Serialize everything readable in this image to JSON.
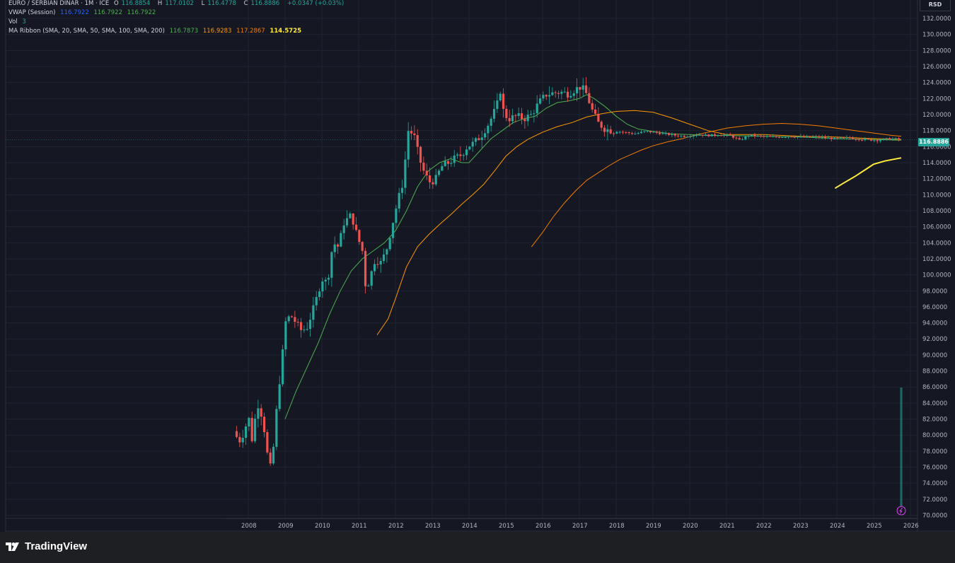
{
  "header": {
    "symbol": "EURO / SERBIAN DINAR · 1M · ICE",
    "ohlc": {
      "o_label": "O",
      "o": "116.8854",
      "h_label": "H",
      "h": "117.0102",
      "l_label": "L",
      "l": "116.4778",
      "c_label": "C",
      "c": "116.8886",
      "change": "+0.0347 (+0.03%)"
    },
    "vwap": {
      "label": "VWAP (Session)",
      "v1": "116.7922",
      "v2": "116.7922",
      "v3": "116.7922"
    },
    "vol": {
      "label": "Vol",
      "value": "3"
    },
    "ma_ribbon": {
      "label": "MA Ribbon (SMA, 20, SMA, 50, SMA, 100, SMA, 200)",
      "v20": "116.7873",
      "v50": "116.9283",
      "v100": "117.2867",
      "v200": "114.5725"
    }
  },
  "currency": "RSD",
  "last_price": "116.8886",
  "brand": "TradingView",
  "colors": {
    "up": "#26a69a",
    "down": "#ef5350",
    "ma20": "#4caf50",
    "ma50": "#ff9800",
    "ma100": "#f57c00",
    "ma200": "#ffeb3b",
    "background": "#151823"
  },
  "chart_data": {
    "type": "candlestick",
    "interval": "1M",
    "y_ticks": [
      "132.0000",
      "130.0000",
      "128.0000",
      "126.0000",
      "124.0000",
      "122.0000",
      "120.0000",
      "118.0000",
      "116.0000",
      "114.0000",
      "112.0000",
      "110.0000",
      "108.0000",
      "106.0000",
      "104.0000",
      "102.0000",
      "100.0000",
      "98.0000",
      "96.0000",
      "94.0000",
      "92.0000",
      "90.0000",
      "88.0000",
      "86.0000",
      "84.0000",
      "82.0000",
      "80.0000",
      "78.0000",
      "76.0000",
      "74.0000",
      "72.0000",
      "70.0000"
    ],
    "x_ticks": [
      "2008",
      "2009",
      "2010",
      "2011",
      "2012",
      "2013",
      "2014",
      "2015",
      "2016",
      "2017",
      "2018",
      "2019",
      "2020",
      "2021",
      "2022",
      "2023",
      "2024",
      "2025",
      "2026"
    ],
    "ylim": [
      69.5,
      132.5
    ],
    "xlim": [
      2006.8,
      2026.4
    ],
    "close_path": [
      [
        2007.6,
        80.5
      ],
      [
        2007.75,
        79.2
      ],
      [
        2007.9,
        80.5
      ],
      [
        2008.0,
        82.5
      ],
      [
        2008.1,
        79.5
      ],
      [
        2008.25,
        84.0
      ],
      [
        2008.4,
        82.0
      ],
      [
        2008.5,
        78.0
      ],
      [
        2008.6,
        76.0
      ],
      [
        2008.7,
        79.0
      ],
      [
        2008.8,
        85.0
      ],
      [
        2008.9,
        88.5
      ],
      [
        2009.0,
        94.0
      ],
      [
        2009.15,
        95.0
      ],
      [
        2009.3,
        94.0
      ],
      [
        2009.45,
        93.0
      ],
      [
        2009.6,
        93.5
      ],
      [
        2009.75,
        95.5
      ],
      [
        2009.85,
        97.0
      ],
      [
        2010.0,
        99.5
      ],
      [
        2010.15,
        99.0
      ],
      [
        2010.3,
        104.0
      ],
      [
        2010.45,
        103.5
      ],
      [
        2010.6,
        106.5
      ],
      [
        2010.8,
        107.5
      ],
      [
        2010.95,
        105.0
      ],
      [
        2011.1,
        103.0
      ],
      [
        2011.2,
        98.0
      ],
      [
        2011.3,
        99.5
      ],
      [
        2011.45,
        102.0
      ],
      [
        2011.6,
        101.5
      ],
      [
        2011.75,
        103.0
      ],
      [
        2011.9,
        106.0
      ],
      [
        2012.05,
        109.0
      ],
      [
        2012.2,
        111.5
      ],
      [
        2012.35,
        118.0
      ],
      [
        2012.5,
        117.5
      ],
      [
        2012.65,
        114.5
      ],
      [
        2012.8,
        112.5
      ],
      [
        2012.95,
        111.5
      ],
      [
        2013.1,
        112.0
      ],
      [
        2013.25,
        113.5
      ],
      [
        2013.45,
        114.0
      ],
      [
        2013.6,
        114.5
      ],
      [
        2013.8,
        115.0
      ],
      [
        2013.95,
        116.0
      ],
      [
        2014.15,
        116.5
      ],
      [
        2014.35,
        117.5
      ],
      [
        2014.55,
        119.0
      ],
      [
        2014.75,
        121.0
      ],
      [
        2014.85,
        123.0
      ],
      [
        2014.95,
        120.0
      ],
      [
        2015.1,
        119.5
      ],
      [
        2015.3,
        119.8
      ],
      [
        2015.5,
        119.5
      ],
      [
        2015.7,
        120.0
      ],
      [
        2015.9,
        121.5
      ],
      [
        2016.1,
        122.5
      ],
      [
        2016.3,
        122.7
      ],
      [
        2016.5,
        122.8
      ],
      [
        2016.7,
        122.6
      ],
      [
        2016.9,
        123.2
      ],
      [
        2017.05,
        123.5
      ],
      [
        2017.2,
        122.5
      ],
      [
        2017.35,
        120.5
      ],
      [
        2017.5,
        119.0
      ],
      [
        2017.7,
        118.2
      ],
      [
        2017.9,
        118.0
      ],
      [
        2018.2,
        117.8
      ],
      [
        2018.5,
        117.6
      ],
      [
        2018.8,
        117.9
      ],
      [
        2019.0,
        117.8
      ],
      [
        2019.3,
        117.6
      ],
      [
        2019.6,
        117.4
      ],
      [
        2019.9,
        117.3
      ],
      [
        2020.2,
        117.5
      ],
      [
        2020.5,
        117.4
      ],
      [
        2020.8,
        117.5
      ],
      [
        2021.1,
        117.4
      ],
      [
        2021.35,
        116.8
      ],
      [
        2021.6,
        117.4
      ],
      [
        2021.9,
        117.3
      ],
      [
        2022.3,
        117.2
      ],
      [
        2022.7,
        117.3
      ],
      [
        2023.1,
        117.2
      ],
      [
        2023.5,
        117.2
      ],
      [
        2023.9,
        117.0
      ],
      [
        2024.3,
        117.1
      ],
      [
        2024.7,
        116.9
      ],
      [
        2025.1,
        116.8
      ],
      [
        2025.45,
        117.0
      ],
      [
        2025.75,
        116.9
      ]
    ],
    "series": [
      {
        "name": "SMA 20",
        "color": "#4caf50",
        "points": [
          [
            2009.0,
            82.0
          ],
          [
            2009.3,
            85.5
          ],
          [
            2009.6,
            88.5
          ],
          [
            2009.9,
            91.5
          ],
          [
            2010.2,
            95.0
          ],
          [
            2010.5,
            98.0
          ],
          [
            2010.8,
            100.5
          ],
          [
            2011.1,
            102.0
          ],
          [
            2011.4,
            103.0
          ],
          [
            2011.7,
            104.0
          ],
          [
            2012.0,
            105.5
          ],
          [
            2012.3,
            108.0
          ],
          [
            2012.6,
            111.0
          ],
          [
            2012.9,
            113.0
          ],
          [
            2013.2,
            114.0
          ],
          [
            2013.5,
            114.5
          ],
          [
            2013.8,
            114.0
          ],
          [
            2014.0,
            114.0
          ],
          [
            2014.3,
            115.5
          ],
          [
            2014.6,
            117.0
          ],
          [
            2014.9,
            118.0
          ],
          [
            2015.2,
            119.0
          ],
          [
            2015.5,
            119.5
          ],
          [
            2015.8,
            119.8
          ],
          [
            2016.1,
            120.8
          ],
          [
            2016.4,
            121.5
          ],
          [
            2016.7,
            121.7
          ],
          [
            2017.0,
            122.0
          ],
          [
            2017.2,
            122.5
          ],
          [
            2017.4,
            122.0
          ],
          [
            2017.7,
            121.0
          ],
          [
            2018.0,
            119.8
          ],
          [
            2018.3,
            118.8
          ],
          [
            2018.6,
            118.2
          ],
          [
            2019.0,
            117.9
          ],
          [
            2019.5,
            117.6
          ],
          [
            2020.0,
            117.5
          ],
          [
            2020.5,
            117.4
          ],
          [
            2021.0,
            117.4
          ],
          [
            2022.0,
            117.3
          ],
          [
            2023.0,
            117.2
          ],
          [
            2024.0,
            117.0
          ],
          [
            2025.0,
            116.9
          ],
          [
            2025.75,
            116.8
          ]
        ]
      },
      {
        "name": "SMA 50",
        "color": "#ff9800",
        "points": [
          [
            2011.5,
            92.5
          ],
          [
            2011.8,
            94.5
          ],
          [
            2012.0,
            97.0
          ],
          [
            2012.3,
            101.0
          ],
          [
            2012.6,
            103.5
          ],
          [
            2012.9,
            105.0
          ],
          [
            2013.2,
            106.3
          ],
          [
            2013.5,
            107.5
          ],
          [
            2013.8,
            108.8
          ],
          [
            2014.1,
            110.0
          ],
          [
            2014.4,
            111.3
          ],
          [
            2014.7,
            113.0
          ],
          [
            2015.0,
            114.8
          ],
          [
            2015.3,
            116.0
          ],
          [
            2015.6,
            116.9
          ],
          [
            2016.0,
            117.8
          ],
          [
            2016.4,
            118.5
          ],
          [
            2016.8,
            119.0
          ],
          [
            2017.2,
            119.7
          ],
          [
            2017.6,
            120.1
          ],
          [
            2018.0,
            120.4
          ],
          [
            2018.5,
            120.5
          ],
          [
            2019.0,
            120.3
          ],
          [
            2019.5,
            119.6
          ],
          [
            2020.0,
            118.8
          ],
          [
            2020.5,
            118.0
          ],
          [
            2021.0,
            117.5
          ],
          [
            2022.0,
            117.5
          ],
          [
            2023.0,
            117.3
          ],
          [
            2024.0,
            117.2
          ],
          [
            2025.0,
            117.0
          ],
          [
            2025.75,
            116.9
          ]
        ]
      },
      {
        "name": "SMA 100",
        "color": "#f57c00",
        "points": [
          [
            2015.7,
            103.5
          ],
          [
            2016.0,
            105.3
          ],
          [
            2016.3,
            107.3
          ],
          [
            2016.6,
            109.0
          ],
          [
            2016.9,
            110.5
          ],
          [
            2017.2,
            111.8
          ],
          [
            2017.5,
            112.7
          ],
          [
            2017.8,
            113.6
          ],
          [
            2018.1,
            114.4
          ],
          [
            2018.4,
            115.0
          ],
          [
            2018.7,
            115.6
          ],
          [
            2019.0,
            116.1
          ],
          [
            2019.4,
            116.6
          ],
          [
            2019.8,
            117.0
          ],
          [
            2020.2,
            117.5
          ],
          [
            2020.6,
            117.9
          ],
          [
            2021.0,
            118.3
          ],
          [
            2021.5,
            118.6
          ],
          [
            2022.0,
            118.8
          ],
          [
            2022.5,
            118.9
          ],
          [
            2023.0,
            118.8
          ],
          [
            2023.5,
            118.6
          ],
          [
            2024.0,
            118.3
          ],
          [
            2024.5,
            118.0
          ],
          [
            2025.0,
            117.7
          ],
          [
            2025.5,
            117.4
          ],
          [
            2025.75,
            117.3
          ]
        ]
      },
      {
        "name": "SMA 200",
        "color": "#ffeb3b",
        "points": [
          [
            2023.95,
            110.8
          ],
          [
            2024.2,
            111.5
          ],
          [
            2024.5,
            112.3
          ],
          [
            2024.8,
            113.2
          ],
          [
            2025.0,
            113.8
          ],
          [
            2025.3,
            114.2
          ],
          [
            2025.75,
            114.6
          ]
        ]
      }
    ],
    "volume": {
      "x": 2025.75,
      "value": 3
    },
    "grid": true
  }
}
